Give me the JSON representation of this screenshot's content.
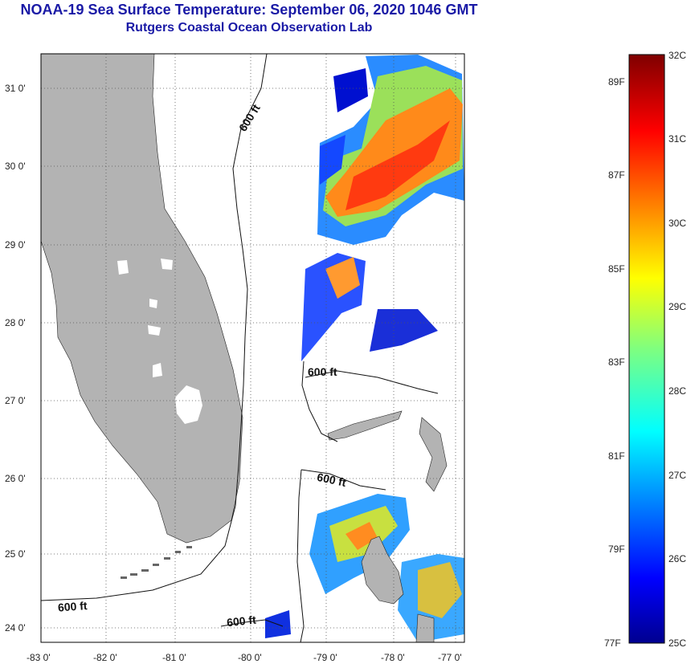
{
  "header": {
    "title": "NOAA-19 Sea Surface Temperature:  September 06, 2020 1046 GMT",
    "subtitle": "Rutgers Coastal Ocean Observation Lab"
  },
  "axes": {
    "lon_ticks": [
      {
        "value": -83,
        "label": "-83 0'"
      },
      {
        "value": -82,
        "label": "-82 0'"
      },
      {
        "value": -81,
        "label": "-81 0'"
      },
      {
        "value": -80,
        "label": "-80 0'"
      },
      {
        "value": -79,
        "label": "-79 0'"
      },
      {
        "value": -78,
        "label": "-78 0'"
      },
      {
        "value": -77,
        "label": "-77 0'"
      }
    ],
    "lat_ticks": [
      {
        "value": 31,
        "label": "31 0'"
      },
      {
        "value": 30,
        "label": "30 0'"
      },
      {
        "value": 29,
        "label": "29 0'"
      },
      {
        "value": 28,
        "label": "28 0'"
      },
      {
        "value": 27,
        "label": "27 0'"
      },
      {
        "value": 26,
        "label": "26 0'"
      },
      {
        "value": 25,
        "label": "25 0'"
      },
      {
        "value": 24,
        "label": "24 0'"
      }
    ],
    "lon_range": [
      -83,
      -76.9
    ],
    "lat_range": [
      23.8,
      31.45
    ],
    "grid": true
  },
  "contours": {
    "label": "600 ft"
  },
  "colorbar": {
    "celsius": [
      {
        "value": 32,
        "label": "32C"
      },
      {
        "value": 31,
        "label": "31C"
      },
      {
        "value": 30,
        "label": "30C"
      },
      {
        "value": 29,
        "label": "29C"
      },
      {
        "value": 28,
        "label": "28C"
      },
      {
        "value": 27,
        "label": "27C"
      },
      {
        "value": 26,
        "label": "26C"
      },
      {
        "value": 25,
        "label": "25C"
      }
    ],
    "fahrenheit": [
      {
        "value": 89,
        "label": "89F"
      },
      {
        "value": 87,
        "label": "87F"
      },
      {
        "value": 85,
        "label": "85F"
      },
      {
        "value": 83,
        "label": "83F"
      },
      {
        "value": 81,
        "label": "81F"
      },
      {
        "value": 79,
        "label": "79F"
      },
      {
        "value": 77,
        "label": "77F"
      }
    ],
    "range_c": [
      25,
      32
    ]
  },
  "colors": {
    "title": "#1a1aa6",
    "land": "#b3b3b3",
    "water": "#ffffff"
  }
}
